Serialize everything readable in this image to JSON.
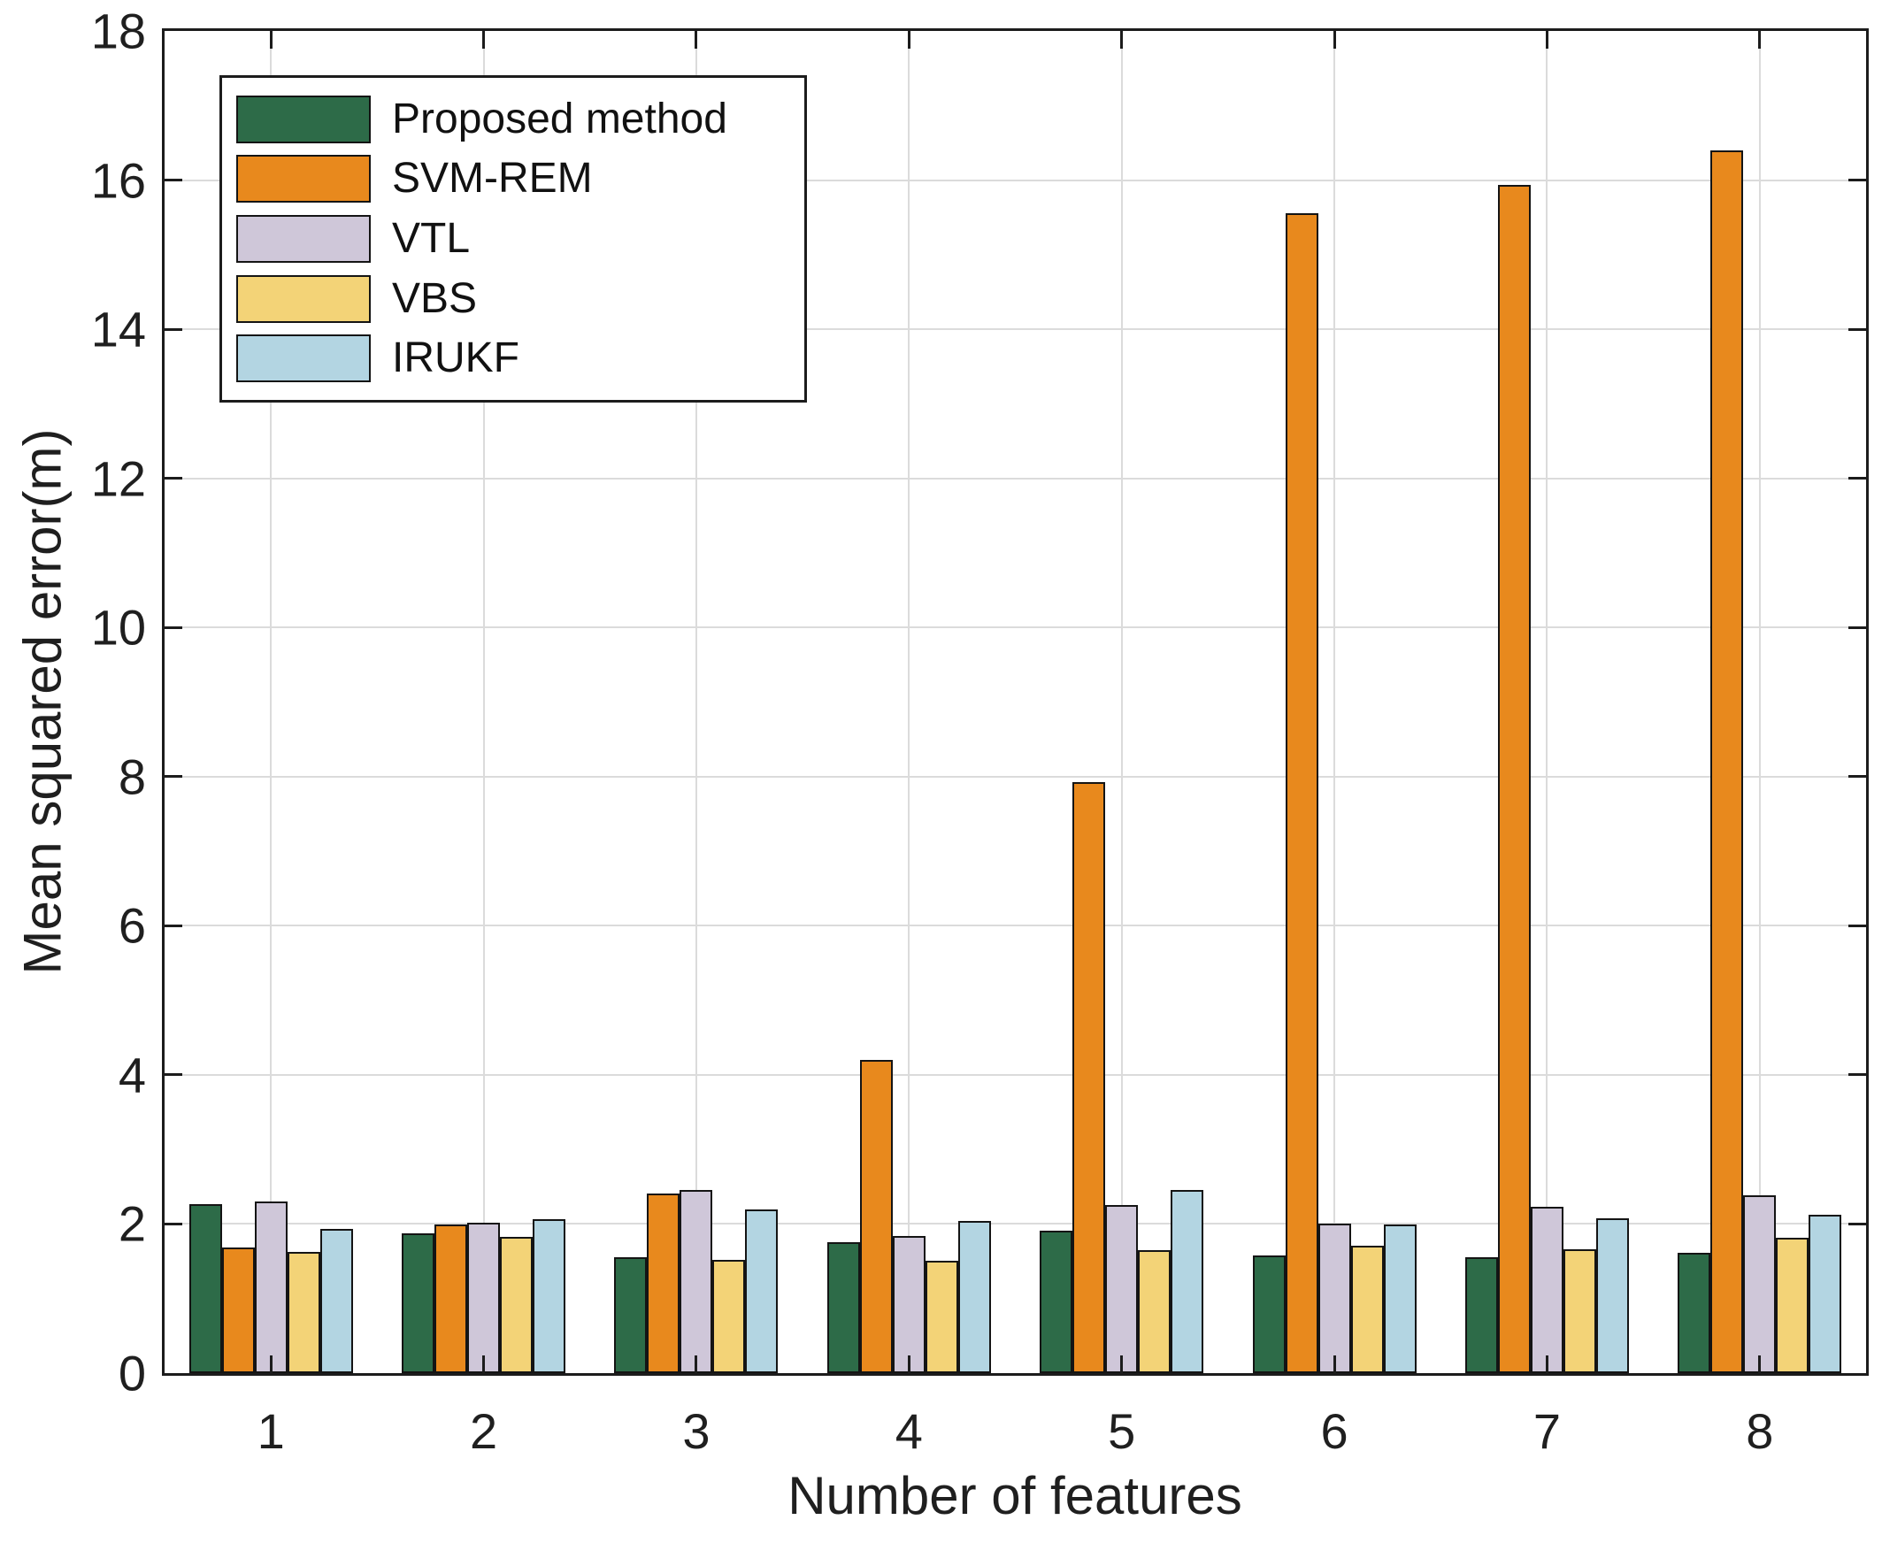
{
  "chart_data": {
    "type": "bar",
    "title": "",
    "xlabel": "Number of features",
    "ylabel": "Mean squared error(m)",
    "categories": [
      "1",
      "2",
      "3",
      "4",
      "5",
      "6",
      "7",
      "8"
    ],
    "series": [
      {
        "name": "Proposed method",
        "color": "#2d6b48",
        "values": [
          2.27,
          1.88,
          1.55,
          1.76,
          1.91,
          1.58,
          1.55,
          1.61
        ]
      },
      {
        "name": "SVM-REM",
        "color": "#e8891d",
        "values": [
          1.68,
          1.99,
          2.41,
          4.2,
          7.93,
          15.55,
          15.93,
          16.4
        ]
      },
      {
        "name": "VTL",
        "color": "#cfc7d9",
        "values": [
          2.3,
          2.02,
          2.46,
          1.84,
          2.25,
          2.0,
          2.23,
          2.38
        ]
      },
      {
        "name": "VBS",
        "color": "#f3d377",
        "values": [
          1.62,
          1.83,
          1.52,
          1.51,
          1.65,
          1.71,
          1.66,
          1.81
        ]
      },
      {
        "name": "IRUKF",
        "color": "#b3d5e2",
        "values": [
          1.93,
          2.07,
          2.2,
          2.04,
          2.46,
          1.99,
          2.08,
          2.12
        ]
      }
    ],
    "ylim": [
      0,
      18
    ],
    "yticks": [
      0,
      2,
      4,
      6,
      8,
      10,
      12,
      14,
      16,
      18
    ],
    "grid": true,
    "bar_group_width_ratio": 0.77,
    "legend_position": "top-left",
    "style": {
      "axis_color": "#1c1c1c",
      "grid_color": "#dbdbdb",
      "bar_edge_color": "#141414",
      "text_color": "#1f1f1f",
      "background": "#ffffff"
    }
  }
}
